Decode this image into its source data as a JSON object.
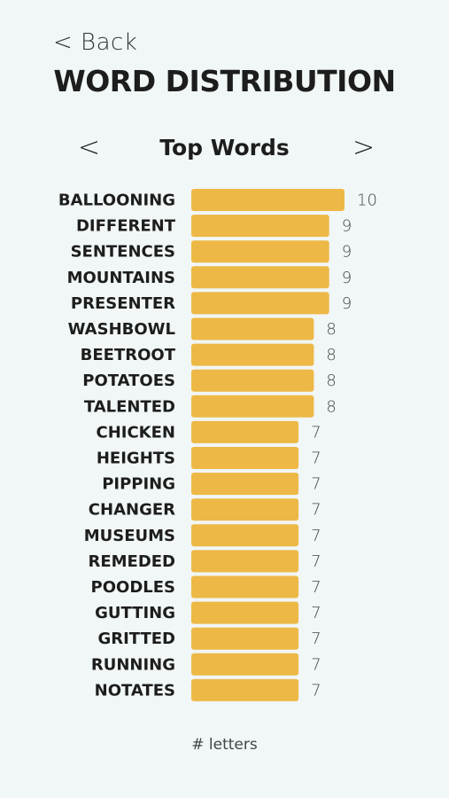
{
  "header": {
    "back_label": "< Back",
    "title": "WORD DISTRIBUTION"
  },
  "nav": {
    "prev_label": "<",
    "next_label": ">"
  },
  "chart_data": {
    "type": "bar",
    "orientation": "horizontal",
    "title": "Top Words",
    "xlabel": "# letters",
    "ylabel": "",
    "bar_color": "#edb845",
    "categories": [
      "BALLOONING",
      "DIFFERENT",
      "SENTENCES",
      "MOUNTAINS",
      "PRESENTER",
      "WASHBOWL",
      "BEETROOT",
      "POTATOES",
      "TALENTED",
      "CHICKEN",
      "HEIGHTS",
      "PIPPING",
      "CHANGER",
      "MUSEUMS",
      "REMEDED",
      "POODLES",
      "GUTTING",
      "GRITTED",
      "RUNNING",
      "NOTATES"
    ],
    "values": [
      10,
      9,
      9,
      9,
      9,
      8,
      8,
      8,
      8,
      7,
      7,
      7,
      7,
      7,
      7,
      7,
      7,
      7,
      7,
      7
    ],
    "xlim": [
      0,
      10
    ],
    "grid": false,
    "legend": "none"
  }
}
